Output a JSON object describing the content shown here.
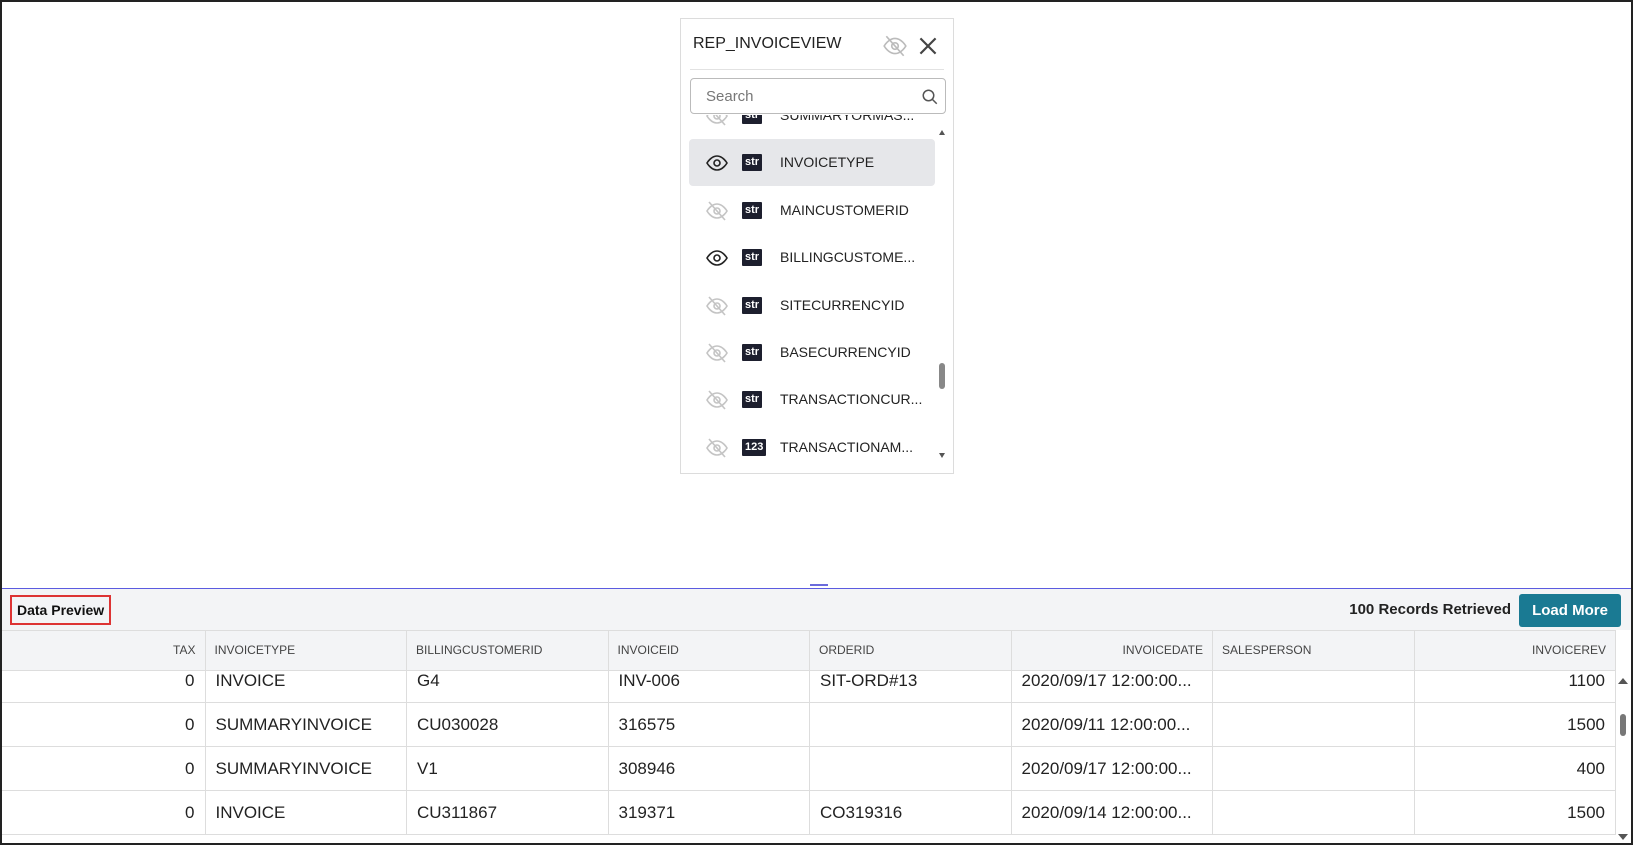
{
  "panel": {
    "title": "REP_INVOICEVIEW",
    "search_placeholder": "Search",
    "fields": [
      {
        "badge": "str",
        "name": "SUMMARYORMAS...",
        "visible": false
      },
      {
        "badge": "str",
        "name": "INVOICETYPE",
        "visible": true,
        "selected": true
      },
      {
        "badge": "str",
        "name": "MAINCUSTOMERID",
        "visible": false
      },
      {
        "badge": "str",
        "name": "BILLINGCUSTOME...",
        "visible": true
      },
      {
        "badge": "str",
        "name": "SITECURRENCYID",
        "visible": false
      },
      {
        "badge": "str",
        "name": "BASECURRENCYID",
        "visible": false
      },
      {
        "badge": "str",
        "name": "TRANSACTIONCUR...",
        "visible": false
      },
      {
        "badge": "123",
        "name": "TRANSACTIONAM...",
        "visible": false
      }
    ]
  },
  "preview": {
    "title": "Data Preview",
    "records": "100 Records Retrieved",
    "button": "Load More",
    "table": {
      "columns": [
        "TAX",
        "INVOICETYPE",
        "BILLINGCUSTOMERID",
        "INVOICEID",
        "ORDERID",
        "INVOICEDATE",
        "SALESPERSON",
        "INVOICEREV"
      ],
      "rows": [
        [
          0,
          "INVOICE",
          "G4",
          "INV-006",
          "SIT-ORD#13",
          "2020/09/17 12:00:00...",
          null,
          1100
        ],
        [
          0,
          "SUMMARYINVOICE",
          "CU030028",
          "316575",
          null,
          "2020/09/11 12:00:00...",
          null,
          1500
        ],
        [
          0,
          "SUMMARYINVOICE",
          "V1",
          "308946",
          null,
          "2020/09/17 12:00:00...",
          null,
          400
        ],
        [
          0,
          "INVOICE",
          "CU311867",
          "319371",
          "CO319316",
          "2020/09/14 12:00:00...",
          null,
          1500
        ]
      ]
    }
  }
}
